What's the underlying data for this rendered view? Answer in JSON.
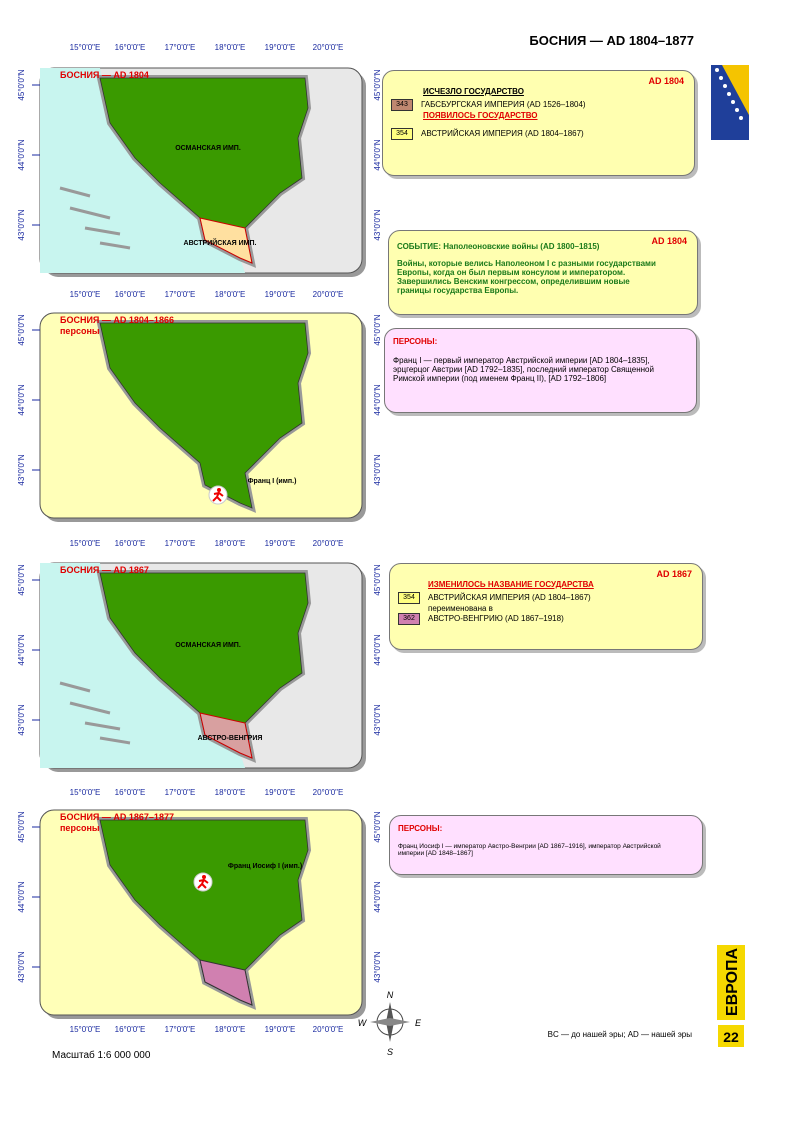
{
  "header": {
    "title": "БОСНИЯ — AD 1804–1877"
  },
  "grid": {
    "lon": [
      "15°0'0\"E",
      "16°0'0\"E",
      "17°0'0\"E",
      "18°0'0\"E",
      "19°0'0\"E",
      "20°0'0\"E"
    ],
    "lat": [
      "45°0'0\"N",
      "44°0'0\"N",
      "43°0'0\"N"
    ]
  },
  "maps": [
    {
      "title": "БОСНИЯ — AD 1804",
      "labels": [
        "ОСМАНСКАЯ ИМП.",
        "АВСТРИЙСКАЯ ИМП."
      ]
    },
    {
      "title": "БОСНИЯ — AD 1804–1866",
      "subtitle": "персоны",
      "labels": [
        "Франц I (имп.)"
      ]
    },
    {
      "title": "БОСНИЯ — AD 1867",
      "labels": [
        "ОСМАНСКАЯ ИМП.",
        "АВСТРО-ВЕНГРИЯ"
      ]
    },
    {
      "title": "БОСНИЯ — AD 1867–1877",
      "subtitle": "персоны",
      "labels": [
        "Франц Иосиф I (имп.)"
      ]
    }
  ],
  "panels": [
    {
      "date": "AD 1804",
      "heading1": "ИСЧЕЗЛО ГОСУДАРСТВО",
      "code1": "343",
      "state1": "ГАБСБУРГСКАЯ ИМПЕРИЯ (AD 1526–1804)",
      "heading2": "ПОЯВИЛОСЬ ГОСУДАРСТВО",
      "code2": "354",
      "state2": "АВСТРИЙСКАЯ ИМПЕРИЯ (AD 1804–1867)"
    },
    {
      "heading": "СОБЫТИЕ: Наполеоновские войны (AD 1800–1815)",
      "date": "AD 1804",
      "text": "Войны, которые велись Наполеоном I с разными государствами Европы, когда он был первым консулом и императором. Завершились Венским конгрессом, определившим новые границы государства Европы."
    },
    {
      "heading": "ПЕРСОНЫ:",
      "text": "Франц I — первый император Австрийской империи [AD 1804–1835], эрцгерцог Австрии [AD 1792–1835], последний император Священной Римской империи (под именем Франц II), [AD 1792–1806]"
    },
    {
      "date": "AD 1867",
      "heading": "ИЗМЕНИЛОСЬ НАЗВАНИЕ ГОСУДАРСТВА",
      "code1": "354",
      "state1": "АВСТРИЙСКАЯ ИМПЕРИЯ (AD 1804–1867)",
      "middle": "переименована в",
      "code2": "362",
      "state2": "АВСТРО-ВЕНГРИЮ (AD 1867–1918)"
    },
    {
      "heading": "ПЕРСОНЫ:",
      "text": "Франц Иосиф I — император Австро-Венгрии [AD 1867–1916], император Австрийской империи [AD 1848–1867]"
    }
  ],
  "compass": [
    "N",
    "W",
    "E",
    "S"
  ],
  "side": {
    "region": "ЕВРОПА",
    "page": "22"
  },
  "footer": {
    "legend": "BC — до нашей эры; AD — нашей эры",
    "scale": "Масштаб 1:6 000 000"
  }
}
